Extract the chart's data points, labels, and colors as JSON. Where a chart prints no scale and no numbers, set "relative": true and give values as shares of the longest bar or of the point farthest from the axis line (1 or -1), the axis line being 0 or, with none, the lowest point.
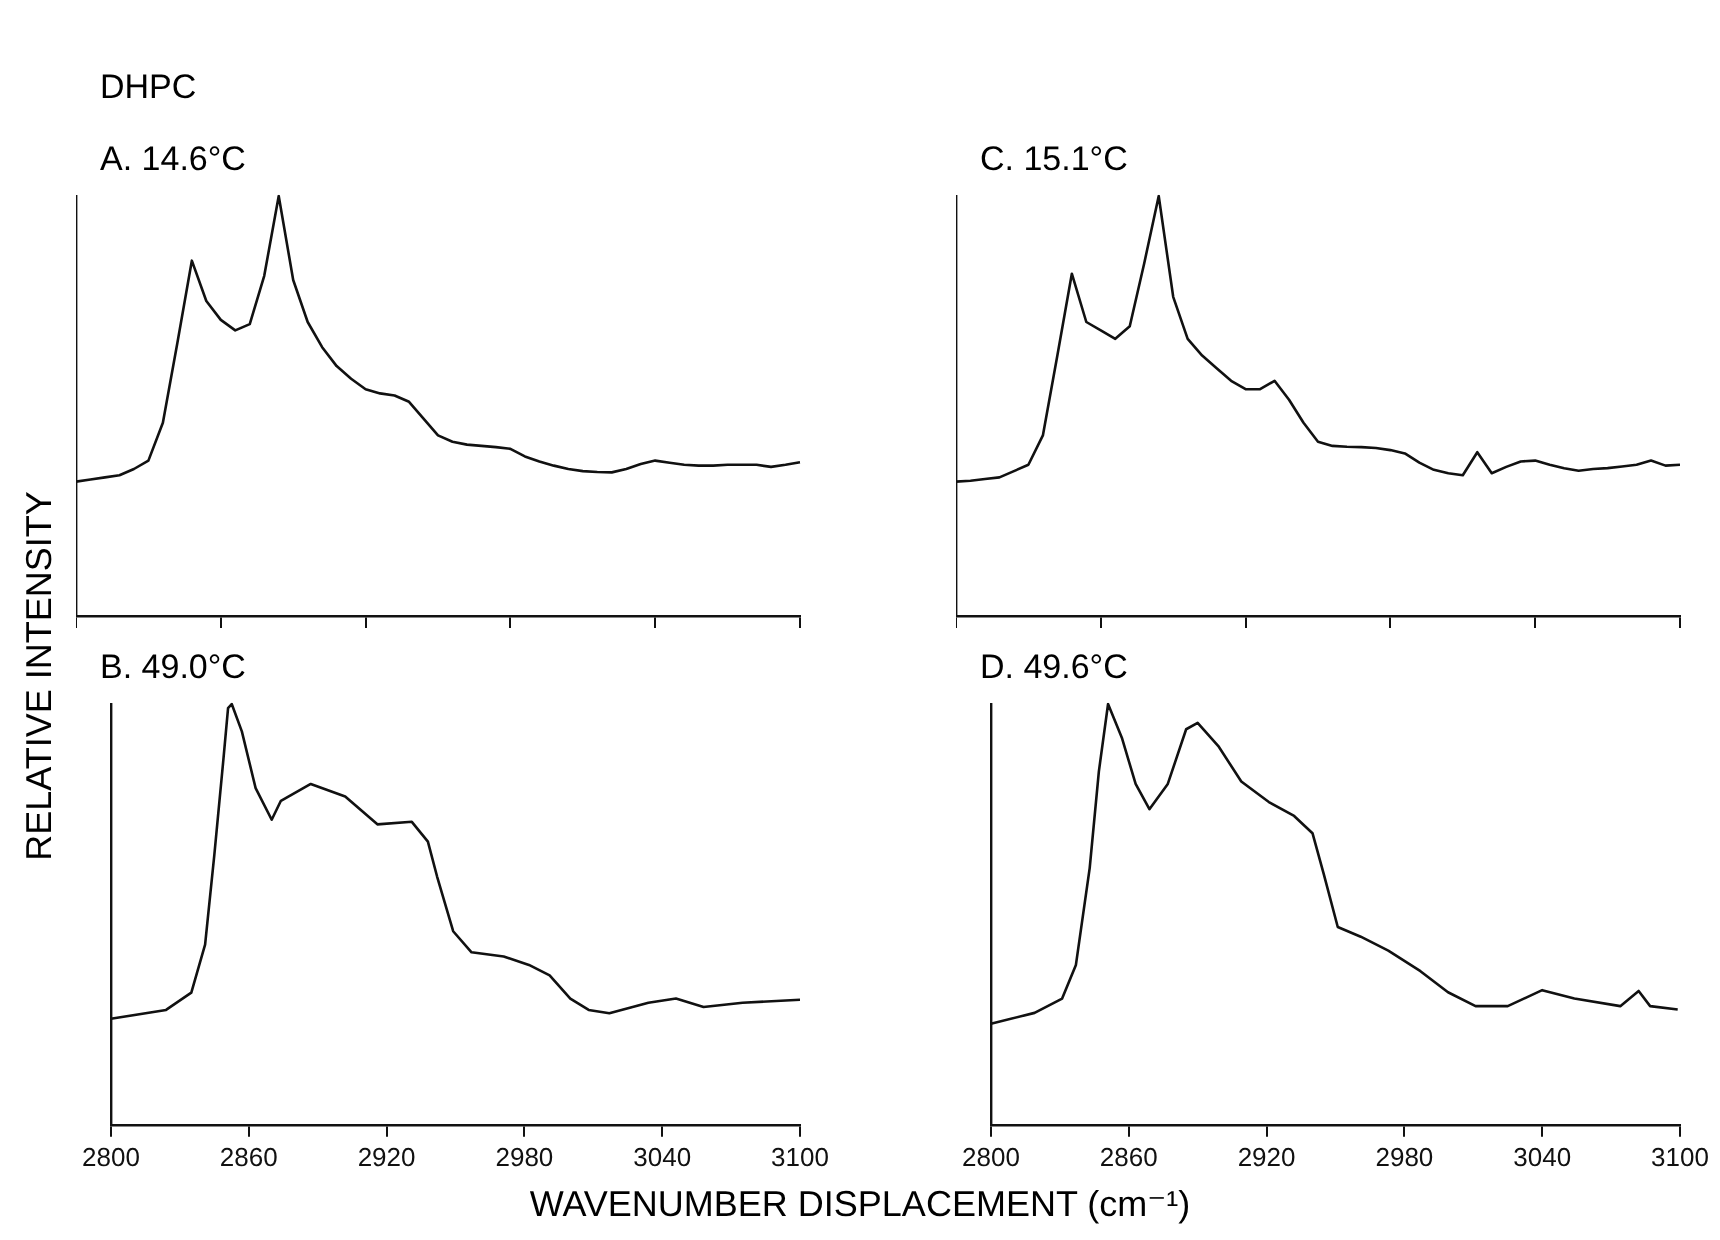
{
  "chart_data": [
    {
      "type": "line",
      "title": "A. 14.6°C",
      "annotations": [
        "DHPC"
      ],
      "ylabel": "RELATIVE INTENSITY",
      "relative": true,
      "color": "#111111",
      "marker": "none",
      "line_style": "solid",
      "tick_labels": false,
      "categories": [
        null,
        null,
        null,
        null,
        null,
        null,
        null,
        null,
        null,
        null,
        null,
        null,
        null,
        null,
        null,
        null,
        null,
        null,
        null,
        null,
        null,
        null,
        null,
        null,
        null,
        null,
        null,
        null,
        null,
        null,
        null,
        null,
        null,
        null,
        null,
        null,
        null,
        null,
        null,
        null,
        null,
        null,
        null,
        null,
        null,
        null,
        null,
        null,
        null,
        null,
        null
      ],
      "values": [
        0.32,
        0.325,
        0.33,
        0.335,
        0.35,
        0.37,
        0.46,
        0.65,
        0.846,
        0.75,
        0.705,
        0.68,
        0.695,
        0.81,
        1.0,
        0.8,
        0.7,
        0.64,
        0.595,
        0.565,
        0.54,
        0.53,
        0.525,
        0.51,
        0.47,
        0.43,
        0.415,
        0.408,
        0.405,
        0.402,
        0.398,
        0.38,
        0.368,
        0.358,
        0.35,
        0.345,
        0.343,
        0.342,
        0.35,
        0.362,
        0.37,
        0.365,
        0.36,
        0.358,
        0.358,
        0.36,
        0.36,
        0.36,
        0.355,
        0.36,
        0.366
      ]
    },
    {
      "type": "line",
      "title": "C. 15.1°C",
      "relative": true,
      "color": "#111111",
      "marker": "none",
      "line_style": "solid",
      "tick_labels": false,
      "categories": [
        null,
        null,
        null,
        null,
        null,
        null,
        null,
        null,
        null,
        null,
        null,
        null,
        null,
        null,
        null,
        null,
        null,
        null,
        null,
        null,
        null,
        null,
        null,
        null,
        null,
        null,
        null,
        null,
        null,
        null,
        null,
        null,
        null,
        null,
        null,
        null,
        null,
        null,
        null,
        null,
        null,
        null,
        null,
        null,
        null,
        null,
        null,
        null,
        null,
        null,
        null
      ],
      "values": [
        0.32,
        0.322,
        0.326,
        0.33,
        0.345,
        0.36,
        0.43,
        0.62,
        0.815,
        0.7,
        0.68,
        0.66,
        0.69,
        0.84,
        1.0,
        0.76,
        0.66,
        0.62,
        0.59,
        0.56,
        0.54,
        0.54,
        0.56,
        0.515,
        0.46,
        0.415,
        0.405,
        0.403,
        0.402,
        0.4,
        0.395,
        0.387,
        0.365,
        0.348,
        0.34,
        0.335,
        0.39,
        0.34,
        0.355,
        0.368,
        0.37,
        0.36,
        0.352,
        0.346,
        0.35,
        0.352,
        0.356,
        0.36,
        0.37,
        0.358,
        0.36
      ]
    },
    {
      "type": "line",
      "title": "B. 49.0°C",
      "xlabel": "WAVENUMBER DISPLACEMENT (cm⁻¹)",
      "relative": true,
      "color": "#111111",
      "marker": "none",
      "line_style": "solid",
      "tick_labels": "x",
      "xlim": [
        2800,
        3100
      ],
      "xticks": [
        2800,
        2860,
        2920,
        2980,
        3040,
        3100
      ],
      "x": [
        2800,
        2824,
        2835,
        2841,
        2845,
        2849,
        2851,
        2852.6,
        2857,
        2863,
        2870,
        2874,
        2887,
        2902,
        2916,
        2931,
        2938,
        2942,
        2949,
        2957,
        2971,
        2982,
        2991,
        3000,
        3008,
        3017,
        3034,
        3046,
        3058,
        3075,
        3100
      ],
      "values": [
        0.252,
        0.273,
        0.314,
        0.428,
        0.64,
        0.87,
        0.99,
        1.0,
        0.935,
        0.8,
        0.725,
        0.77,
        0.81,
        0.78,
        0.714,
        0.72,
        0.673,
        0.59,
        0.46,
        0.41,
        0.4,
        0.38,
        0.355,
        0.3,
        0.273,
        0.265,
        0.29,
        0.3,
        0.28,
        0.29,
        0.297
      ]
    },
    {
      "type": "line",
      "title": "D. 49.6°C",
      "relative": true,
      "color": "#111111",
      "marker": "none",
      "line_style": "solid",
      "tick_labels": "x",
      "xlim": [
        2800,
        3100
      ],
      "xticks": [
        2800,
        2860,
        2920,
        2980,
        3040,
        3100
      ],
      "x": [
        2800,
        2819,
        2831,
        2837,
        2843,
        2847,
        2851,
        2857,
        2863,
        2869,
        2877,
        2885,
        2890,
        2899,
        2909,
        2921,
        2932,
        2940,
        2945,
        2951,
        2961,
        2973,
        2987,
        2999,
        3011,
        3025,
        3040,
        3054,
        3074,
        3082,
        3087,
        3099
      ],
      "values": [
        0.24,
        0.266,
        0.3,
        0.38,
        0.61,
        0.84,
        1.0,
        0.92,
        0.81,
        0.75,
        0.81,
        0.94,
        0.955,
        0.9,
        0.816,
        0.767,
        0.734,
        0.693,
        0.594,
        0.47,
        0.447,
        0.414,
        0.365,
        0.315,
        0.282,
        0.282,
        0.32,
        0.3,
        0.282,
        0.318,
        0.282,
        0.274
      ]
    }
  ]
}
